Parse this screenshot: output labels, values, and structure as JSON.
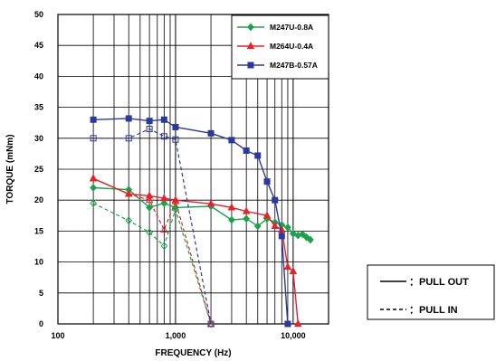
{
  "chart_data": {
    "type": "line",
    "xlabel": "FREQUENCY (Hz)",
    "ylabel": "TORQUE (mNm)",
    "x_scale": "log",
    "xlim": [
      100,
      20000
    ],
    "ylim": [
      0,
      50
    ],
    "x_ticks": [
      {
        "value": 100,
        "label": "100"
      },
      {
        "value": 1000,
        "label": "1,000"
      },
      {
        "value": 10000,
        "label": "10,000"
      }
    ],
    "y_ticks": [
      0,
      5,
      10,
      15,
      20,
      25,
      30,
      35,
      40,
      45,
      50
    ],
    "grid": true,
    "legend_position": "top-right",
    "series": [
      {
        "name": "M247U-0.8A",
        "color": "#1aa34a",
        "marker": "diamond",
        "pull_out": [
          [
            200,
            22
          ],
          [
            400,
            21.7
          ],
          [
            600,
            18.8
          ],
          [
            800,
            19.5
          ],
          [
            1000,
            18.8
          ],
          [
            2000,
            19.0
          ],
          [
            3000,
            16.8
          ],
          [
            4000,
            17.0
          ],
          [
            5000,
            15.8
          ],
          [
            6000,
            17.0
          ],
          [
            7000,
            16.4
          ],
          [
            8000,
            16.0
          ],
          [
            9000,
            15.6
          ],
          [
            10000,
            14.6
          ],
          [
            11000,
            14.3
          ],
          [
            12000,
            14.5
          ],
          [
            13000,
            14.0
          ],
          [
            14000,
            13.6
          ]
        ],
        "pull_in": [
          [
            200,
            19.5
          ],
          [
            400,
            16.7
          ],
          [
            600,
            14.8
          ],
          [
            800,
            12.6
          ],
          [
            1000,
            18.5
          ],
          [
            2000,
            0
          ]
        ]
      },
      {
        "name": "M264U-0.4A",
        "color": "#e8202a",
        "marker": "triangle",
        "pull_out": [
          [
            200,
            23.5
          ],
          [
            400,
            21.0
          ],
          [
            600,
            20.7
          ],
          [
            800,
            20.3
          ],
          [
            1000,
            20.0
          ],
          [
            2000,
            19.4
          ],
          [
            3000,
            18.8
          ],
          [
            4000,
            18.2
          ],
          [
            6000,
            17.5
          ],
          [
            7000,
            15.8
          ],
          [
            8000,
            15.2
          ],
          [
            9000,
            9.2
          ],
          [
            10000,
            8.5
          ],
          [
            11000,
            0
          ]
        ],
        "pull_in": [
          [
            200,
            23.5
          ],
          [
            400,
            21.0
          ],
          [
            600,
            20.0
          ],
          [
            800,
            15.2
          ],
          [
            1000,
            19.8
          ],
          [
            2000,
            0
          ]
        ]
      },
      {
        "name": "M247B-0.57A",
        "color": "#2b3a9a",
        "marker": "square",
        "pull_out": [
          [
            200,
            33.0
          ],
          [
            400,
            33.2
          ],
          [
            600,
            32.8
          ],
          [
            800,
            33.0
          ],
          [
            1000,
            31.8
          ],
          [
            2000,
            30.8
          ],
          [
            3000,
            29.7
          ],
          [
            4000,
            28.0
          ],
          [
            5000,
            27.2
          ],
          [
            6000,
            23.0
          ],
          [
            7000,
            20.0
          ],
          [
            8000,
            14.2
          ],
          [
            9000,
            0
          ]
        ],
        "pull_in": [
          [
            200,
            30.0
          ],
          [
            400,
            30.0
          ],
          [
            600,
            31.5
          ],
          [
            800,
            30.3
          ],
          [
            1000,
            29.8
          ],
          [
            2000,
            0
          ]
        ]
      }
    ],
    "line_key": [
      {
        "style": "solid",
        "label": "：PULL  OUT"
      },
      {
        "style": "dashed",
        "label": "：PULL  IN"
      }
    ]
  }
}
